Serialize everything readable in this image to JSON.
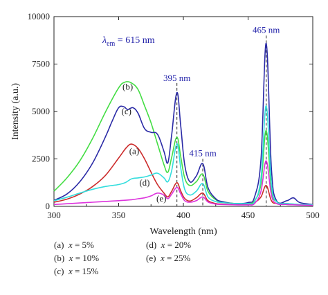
{
  "chart_data": {
    "type": "line",
    "xlabel": "Wavelength (nm)",
    "ylabel": "Intensity (a.u.)",
    "xlim": [
      300,
      500
    ],
    "ylim": [
      0,
      10000
    ],
    "xticks": [
      300,
      350,
      400,
      450,
      500
    ],
    "yticks": [
      0,
      2500,
      5000,
      7500,
      10000
    ],
    "grid": false,
    "series": [
      {
        "name": "(a)",
        "color": "#cc2b2b",
        "x": [
          300,
          310,
          320,
          330,
          340,
          350,
          356,
          360,
          365,
          370,
          375,
          380,
          385,
          388,
          391,
          395,
          398,
          401,
          405,
          410,
          415,
          419,
          425,
          430,
          440,
          450,
          455,
          460,
          464,
          468,
          472,
          480,
          490,
          500
        ],
        "y": [
          220,
          380,
          650,
          1050,
          1650,
          2550,
          3100,
          3280,
          3050,
          2500,
          1800,
          1150,
          700,
          500,
          800,
          1250,
          800,
          420,
          280,
          450,
          700,
          300,
          150,
          120,
          90,
          110,
          200,
          500,
          1100,
          300,
          150,
          100,
          80,
          60
        ]
      },
      {
        "name": "(b)",
        "color": "#44dd44",
        "x": [
          300,
          310,
          320,
          330,
          340,
          350,
          355,
          360,
          365,
          370,
          375,
          380,
          385,
          388,
          391,
          395,
          398,
          401,
          405,
          410,
          415,
          419,
          425,
          430,
          440,
          450,
          455,
          460,
          464,
          468,
          472,
          480,
          490,
          500
        ],
        "y": [
          800,
          1500,
          2400,
          3600,
          5000,
          6250,
          6550,
          6500,
          6150,
          5300,
          4400,
          3300,
          2200,
          1800,
          2600,
          3650,
          2600,
          1500,
          1100,
          1300,
          1700,
          800,
          350,
          250,
          150,
          150,
          300,
          1200,
          4000,
          900,
          250,
          150,
          100,
          80
        ]
      },
      {
        "name": "(c)",
        "color": "#2a2aa6",
        "x": [
          300,
          310,
          320,
          330,
          340,
          345,
          350,
          354,
          357,
          361,
          365,
          370,
          375,
          380,
          385,
          388,
          391,
          395,
          398,
          401,
          405,
          410,
          415,
          419,
          425,
          430,
          440,
          450,
          455,
          460,
          464,
          468,
          472,
          480,
          485,
          490,
          500
        ],
        "y": [
          320,
          650,
          1300,
          2300,
          3700,
          4500,
          5200,
          5250,
          5100,
          5200,
          4900,
          4100,
          3900,
          3800,
          2900,
          2300,
          3800,
          6000,
          4200,
          2200,
          1300,
          1600,
          2250,
          1000,
          400,
          250,
          150,
          200,
          500,
          2500,
          8600,
          2000,
          300,
          300,
          450,
          200,
          100
        ]
      },
      {
        "name": "(d)",
        "color": "#33dddd",
        "x": [
          300,
          310,
          320,
          330,
          340,
          350,
          355,
          360,
          365,
          370,
          375,
          380,
          385,
          388,
          391,
          395,
          398,
          401,
          405,
          410,
          415,
          419,
          425,
          430,
          440,
          450,
          455,
          460,
          464,
          468,
          472,
          480,
          490,
          500
        ],
        "y": [
          300,
          480,
          700,
          900,
          1050,
          1150,
          1250,
          1450,
          1500,
          1550,
          1650,
          1750,
          1500,
          1300,
          1900,
          3300,
          2000,
          900,
          600,
          800,
          1200,
          500,
          250,
          200,
          150,
          150,
          250,
          1500,
          5300,
          1200,
          250,
          150,
          100,
          80
        ]
      },
      {
        "name": "(e)",
        "color": "#dd33dd",
        "x": [
          300,
          310,
          320,
          330,
          340,
          350,
          360,
          365,
          370,
          375,
          380,
          385,
          388,
          391,
          395,
          398,
          401,
          405,
          410,
          415,
          419,
          425,
          430,
          440,
          450,
          455,
          460,
          464,
          468,
          472,
          480,
          490,
          500
        ],
        "y": [
          100,
          140,
          180,
          220,
          260,
          300,
          350,
          400,
          450,
          550,
          700,
          600,
          400,
          650,
          1000,
          650,
          300,
          220,
          300,
          500,
          230,
          120,
          100,
          80,
          80,
          150,
          800,
          2400,
          600,
          150,
          100,
          70,
          50
        ]
      }
    ],
    "annotations": [
      {
        "text": "(a)",
        "x": 362,
        "y": 2750
      },
      {
        "text": "(b)",
        "x": 357,
        "y": 6150
      },
      {
        "text": "(c)",
        "x": 356,
        "y": 4850
      },
      {
        "text": "(d)",
        "x": 370,
        "y": 1100
      },
      {
        "text": "(e)",
        "x": 383,
        "y": 250
      },
      {
        "text": "395 nm",
        "x": 395,
        "y": 6600
      },
      {
        "text": "415 nm",
        "x": 415,
        "y": 2650
      },
      {
        "text": "465 nm",
        "x": 464,
        "y": 9150
      }
    ],
    "reference_lines": [
      395,
      415,
      464
    ],
    "em_label": {
      "lambda": "λ",
      "subscript": "em",
      "value": " = 615 nm"
    }
  },
  "legend": {
    "a": {
      "tag": "(a)",
      "var": "x",
      "value": " = 5%"
    },
    "b": {
      "tag": "(b)",
      "var": "x",
      "value": " = 10%"
    },
    "c": {
      "tag": "(c)",
      "var": "x",
      "value": " = 15%"
    },
    "d": {
      "tag": "(d)",
      "var": "x",
      "value": " = 20%"
    },
    "e": {
      "tag": "(e)",
      "var": "x",
      "value": " = 25%"
    }
  }
}
